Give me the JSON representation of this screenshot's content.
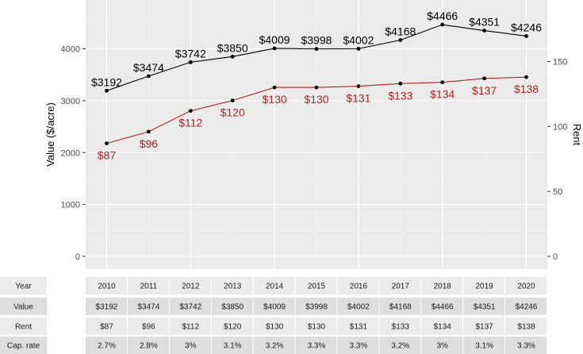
{
  "chart_data": {
    "type": "line",
    "title": "",
    "x": [
      2010,
      2011,
      2012,
      2013,
      2014,
      2015,
      2016,
      2017,
      2018,
      2019,
      2020
    ],
    "xlim": [
      2009.5,
      2020.5
    ],
    "x_ticks": [
      2010,
      2012,
      2014,
      2016,
      2018,
      2020
    ],
    "ylabel": "Value ($/acre)",
    "ylim": [
      0,
      4800
    ],
    "y_ticks": [
      "0",
      "1000",
      "2000",
      "3000",
      "4000"
    ],
    "y2label": "Rent",
    "y2lim": [
      0,
      200
    ],
    "y2_ticks": [
      "0",
      "50",
      "100",
      "150"
    ],
    "grid": true,
    "background": "#EBEBEB",
    "series": [
      {
        "axis": "left",
        "color": "#000000",
        "values": [
          3192,
          3474,
          3742,
          3850,
          4009,
          3998,
          4002,
          4168,
          4466,
          4351,
          4246
        ],
        "labels": [
          "$3192",
          "$3474",
          "$3742",
          "$3850",
          "$4009",
          "$3998",
          "$4002",
          "$4168",
          "$4466",
          "$4351",
          "$4246"
        ]
      },
      {
        "axis": "right",
        "color": "#B22222",
        "values": [
          87,
          96,
          112,
          120,
          130,
          130,
          131,
          133,
          134,
          137,
          138
        ],
        "labels": [
          "$87",
          "$96",
          "$112",
          "$120",
          "$130",
          "$130",
          "$131",
          "$133",
          "$134",
          "$137",
          "$138"
        ]
      }
    ],
    "table": {
      "row_headers": [
        "Year",
        "Value",
        "Rent",
        "Cap. rate"
      ],
      "rows": [
        [
          "2010",
          "2011",
          "2012",
          "2013",
          "2014",
          "2015",
          "2016",
          "2017",
          "2018",
          "2019",
          "2020"
        ],
        [
          "$3192",
          "$3474",
          "$3742",
          "$3850",
          "$4009",
          "$3998",
          "$4002",
          "$4168",
          "$4466",
          "$4351",
          "$4246"
        ],
        [
          "$87",
          "$96",
          "$112",
          "$120",
          "$130",
          "$130",
          "$131",
          "$133",
          "$134",
          "$137",
          "$138"
        ],
        [
          "2.7%",
          "2.8%",
          "3%",
          "3.1%",
          "3.2%",
          "3.3%",
          "3.3%",
          "3.2%",
          "3%",
          "3.1%",
          "3.3%"
        ]
      ]
    }
  }
}
